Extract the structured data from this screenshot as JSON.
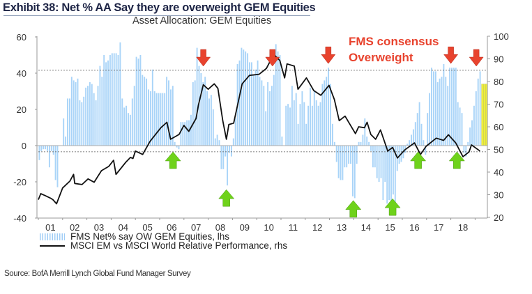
{
  "header": {
    "title": "Exhibit 38: Net % AA Say they are overweight GEM Equities",
    "source": "Source: BofA Merrill Lynch Global Fund Manager Survey"
  },
  "chart_data": {
    "type": "bar+line",
    "title": "Asset Allocation: GEM Equities",
    "annotation_text": [
      "FMS consensus",
      "Overweight"
    ],
    "x_ticks": [
      "01",
      "02",
      "03",
      "04",
      "05",
      "06",
      "07",
      "08",
      "09",
      "10",
      "11",
      "12",
      "13",
      "14",
      "15",
      "16",
      "17",
      "18"
    ],
    "y_left": {
      "ticks": [
        60,
        40,
        20,
        0,
        -20,
        -40
      ],
      "lim": [
        -40,
        60
      ]
    },
    "y_right": {
      "ticks": [
        100,
        90,
        80,
        70,
        60,
        50,
        40,
        30,
        20
      ],
      "lim": [
        20,
        100
      ]
    },
    "reference_lines_lhs": [
      41.6,
      -3.4
    ],
    "legend": [
      {
        "label": "FMS Net% say OW GEM Equities, lhs",
        "type": "bar"
      },
      {
        "label": "MSCI EM vs MSCI World Relative Performance, rhs",
        "type": "line"
      }
    ],
    "colors": {
      "bars": "#a9d4f8",
      "highlight": "#eef03a",
      "line": "#111111",
      "sell_arrow": "#e8432e",
      "buy_arrow": "#6fd21b",
      "note": "#e8432e"
    },
    "bars": {
      "name": "FMS Net% say OW GEM Equities, lhs",
      "start": "2001-01",
      "highlight_last": 3,
      "values": [
        -8,
        -3,
        -2,
        -2,
        -3,
        -12,
        -3,
        -5,
        -19,
        -23,
        0,
        0,
        15,
        5,
        26,
        26,
        38,
        36,
        35,
        37,
        25,
        24,
        27,
        32,
        33,
        35,
        34,
        29,
        25,
        33,
        44,
        38,
        50,
        46,
        47,
        50,
        51,
        51,
        51,
        50,
        57,
        26,
        21,
        22,
        18,
        17,
        26,
        33,
        49,
        48,
        50,
        39,
        38,
        37,
        31,
        30,
        42,
        30,
        29,
        29,
        29,
        29,
        29,
        38,
        36,
        31,
        33,
        2,
        -1,
        -2,
        13,
        13,
        13,
        14,
        14,
        17,
        35,
        36,
        54,
        44,
        40,
        35,
        38,
        30,
        26,
        28,
        20,
        4,
        6,
        3,
        -13,
        -13,
        -6,
        -22,
        -4,
        -6,
        4,
        15,
        45,
        47,
        54,
        53,
        52,
        51,
        46,
        46,
        39,
        42,
        47,
        38,
        36,
        33,
        19,
        35,
        30,
        33,
        39,
        56,
        52,
        50,
        5,
        0,
        22,
        23,
        21,
        33,
        25,
        29,
        12,
        23,
        30,
        24,
        12,
        22,
        32,
        22,
        30,
        25,
        22,
        24,
        34,
        36,
        38,
        43,
        34,
        12,
        2,
        -9,
        -18,
        -19,
        -19,
        -12,
        -12,
        -10,
        -10,
        -28,
        -29,
        -10,
        2,
        2,
        6,
        15,
        5,
        2,
        -3,
        -12,
        -12,
        -18,
        -20,
        -18,
        -30,
        -20,
        -32,
        -30,
        -33,
        -27,
        -32,
        -14,
        -10,
        -9,
        -7,
        -4,
        1,
        3,
        6,
        9,
        13,
        18,
        24,
        12,
        3,
        -5,
        18,
        29,
        43,
        41,
        41,
        35,
        37,
        38,
        45,
        38,
        33,
        43,
        43,
        43,
        43,
        24,
        21,
        18,
        -4,
        -6,
        2,
        10,
        14,
        22,
        30,
        37,
        41,
        34,
        34,
        34
      ]
    },
    "line": {
      "name": "MSCI EM vs MSCI World Relative Performance, rhs",
      "points": [
        [
          2001.0,
          27.8
        ],
        [
          2001.1,
          30.5
        ],
        [
          2001.3,
          29.5
        ],
        [
          2001.5,
          28.5
        ],
        [
          2001.6,
          27.8
        ],
        [
          2001.75,
          26
        ],
        [
          2002.0,
          33
        ],
        [
          2002.3,
          36
        ],
        [
          2002.45,
          39
        ],
        [
          2002.5,
          35
        ],
        [
          2002.8,
          34.5
        ],
        [
          2003.05,
          37
        ],
        [
          2003.3,
          35.5
        ],
        [
          2003.6,
          40.6
        ],
        [
          2003.9,
          42.5
        ],
        [
          2004.1,
          45.2
        ],
        [
          2004.2,
          39
        ],
        [
          2004.6,
          44.3
        ],
        [
          2004.8,
          46.5
        ],
        [
          2004.9,
          46
        ],
        [
          2005.0,
          49.3
        ],
        [
          2005.3,
          47.8
        ],
        [
          2005.6,
          53.5
        ],
        [
          2006.05,
          59.6
        ],
        [
          2006.3,
          62
        ],
        [
          2006.45,
          54.5
        ],
        [
          2006.8,
          56.6
        ],
        [
          2007.0,
          60.6
        ],
        [
          2007.2,
          58
        ],
        [
          2007.5,
          63.7
        ],
        [
          2007.6,
          69.8
        ],
        [
          2007.8,
          78.6
        ],
        [
          2008.0,
          76.6
        ],
        [
          2008.25,
          79
        ],
        [
          2008.4,
          77
        ],
        [
          2008.6,
          62.7
        ],
        [
          2008.75,
          54.5
        ],
        [
          2008.85,
          61
        ],
        [
          2009.05,
          61.6
        ],
        [
          2009.4,
          79
        ],
        [
          2009.7,
          82.7
        ],
        [
          2010.1,
          83.2
        ],
        [
          2010.4,
          85.8
        ],
        [
          2010.7,
          92
        ],
        [
          2010.95,
          89.3
        ],
        [
          2011.15,
          81.6
        ],
        [
          2011.25,
          87.8
        ],
        [
          2011.55,
          86.8
        ],
        [
          2011.7,
          76.6
        ],
        [
          2012.05,
          81.6
        ],
        [
          2012.35,
          76
        ],
        [
          2012.64,
          73.9
        ],
        [
          2012.98,
          78.3
        ],
        [
          2013.2,
          72
        ],
        [
          2013.4,
          62.7
        ],
        [
          2013.64,
          64.7
        ],
        [
          2014.07,
          57
        ],
        [
          2014.2,
          60
        ],
        [
          2014.44,
          59.6
        ],
        [
          2014.55,
          62
        ],
        [
          2014.7,
          56.6
        ],
        [
          2014.9,
          54.5
        ],
        [
          2015.1,
          58.6
        ],
        [
          2015.4,
          49.3
        ],
        [
          2015.6,
          50.9
        ],
        [
          2015.8,
          46.2
        ],
        [
          2016.1,
          49.8
        ],
        [
          2016.5,
          52.9
        ],
        [
          2016.75,
          47.8
        ],
        [
          2016.98,
          51.4
        ],
        [
          2017.4,
          55
        ],
        [
          2017.7,
          54
        ],
        [
          2017.9,
          56.5
        ],
        [
          2018.2,
          52.9
        ],
        [
          2018.5,
          46.8
        ],
        [
          2018.75,
          48.9
        ],
        [
          2018.85,
          52
        ],
        [
          2019.2,
          49.3
        ]
      ]
    },
    "arrows": [
      {
        "type": "sell",
        "x": 2007.8
      },
      {
        "type": "sell",
        "x": 2010.65
      },
      {
        "type": "sell",
        "x": 2012.95
      },
      {
        "type": "sell",
        "x": 2018.0
      },
      {
        "type": "sell",
        "x": 2019.05
      },
      {
        "type": "buy",
        "x": 2006.55
      },
      {
        "type": "buy",
        "x": 2008.75
      },
      {
        "type": "buy",
        "x": 2013.98
      },
      {
        "type": "buy",
        "x": 2015.6
      },
      {
        "type": "buy",
        "x": 2016.65
      },
      {
        "type": "buy",
        "x": 2018.25
      }
    ]
  }
}
